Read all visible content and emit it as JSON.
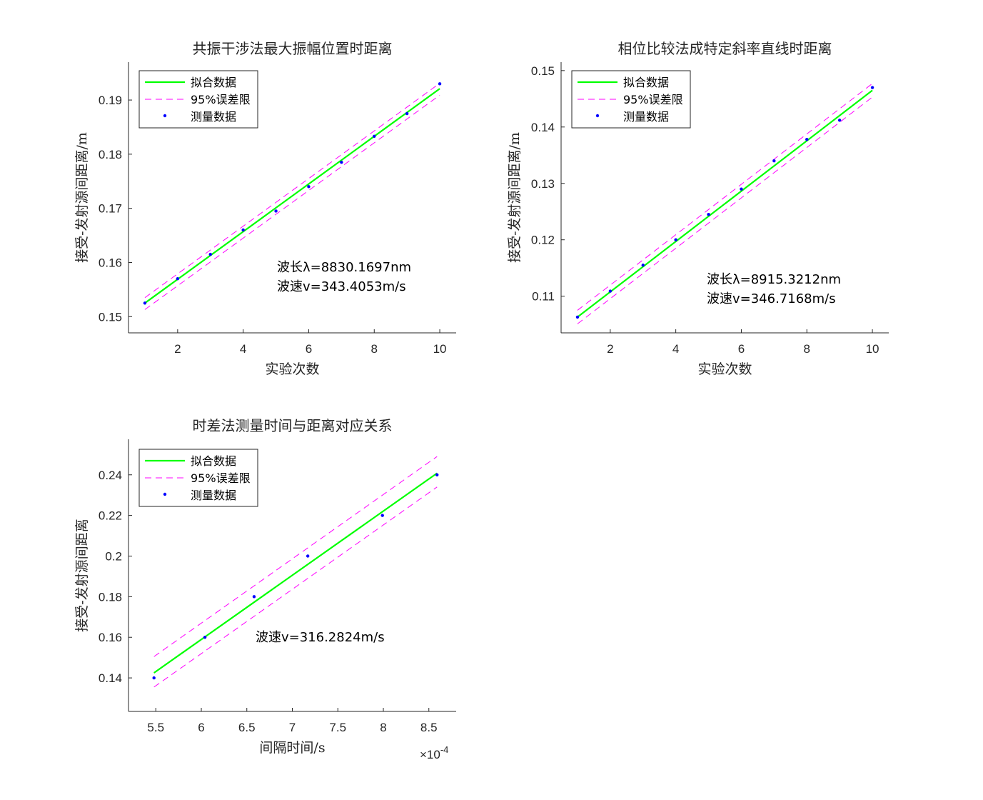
{
  "chart_data": [
    {
      "type": "scatter",
      "title": "共振干涉法最大振幅位置时距离",
      "xlabel": "实验次数",
      "ylabel": "接受-发射源间距离/m",
      "xlim": [
        0.5,
        10.5
      ],
      "ylim": [
        0.147,
        0.197
      ],
      "xticks": [
        2,
        4,
        6,
        8,
        10
      ],
      "yticks": [
        0.15,
        0.16,
        0.17,
        0.18,
        0.19
      ],
      "xtick_labels": [
        "2",
        "4",
        "6",
        "8",
        "10"
      ],
      "ytick_labels": [
        "0.15",
        "0.16",
        "0.17",
        "0.18",
        "0.19"
      ],
      "legend": {
        "position": "top-left",
        "entries": [
          "拟合数据",
          "95%误差限",
          "测量数据"
        ]
      },
      "measured": {
        "x": [
          1,
          2,
          3,
          4,
          5,
          6,
          7,
          8,
          9,
          10
        ],
        "y": [
          0.1525,
          0.157,
          0.1615,
          0.166,
          0.1695,
          0.174,
          0.1785,
          0.1833,
          0.1875,
          0.193
        ]
      },
      "fit": {
        "x": [
          1,
          10
        ],
        "y": [
          0.1525,
          0.1921
        ]
      },
      "bounds_upper": {
        "x": [
          1,
          10
        ],
        "y": [
          0.1535,
          0.1931
        ]
      },
      "bounds_lower": {
        "x": [
          1,
          10
        ],
        "y": [
          0.1513,
          0.1909
        ]
      },
      "annotations": [
        "波长λ=8830.1697nm",
        "波速v=343.4053m/s"
      ],
      "colors": {
        "fit": "#00ff00",
        "bounds": "#ff00ff",
        "measured": "#0000ff"
      }
    },
    {
      "type": "scatter",
      "title": "相位比较法成特定斜率直线时距离",
      "xlabel": "实验次数",
      "ylabel": "接受-发射源间距离/m",
      "xlim": [
        0.5,
        10.5
      ],
      "ylim": [
        0.1035,
        0.1515
      ],
      "xticks": [
        2,
        4,
        6,
        8,
        10
      ],
      "yticks": [
        0.11,
        0.12,
        0.13,
        0.14,
        0.15
      ],
      "xtick_labels": [
        "2",
        "4",
        "6",
        "8",
        "10"
      ],
      "ytick_labels": [
        "0.11",
        "0.12",
        "0.13",
        "0.14",
        "0.15"
      ],
      "legend": {
        "position": "top-left",
        "entries": [
          "拟合数据",
          "95%误差限",
          "测量数据"
        ]
      },
      "measured": {
        "x": [
          1,
          2,
          3,
          4,
          5,
          6,
          7,
          8,
          9,
          10
        ],
        "y": [
          0.1063,
          0.1109,
          0.1155,
          0.12,
          0.1245,
          0.129,
          0.134,
          0.1378,
          0.1412,
          0.147
        ]
      },
      "fit": {
        "x": [
          1,
          10
        ],
        "y": [
          0.1063,
          0.1465
        ]
      },
      "bounds_upper": {
        "x": [
          1,
          10
        ],
        "y": [
          0.1075,
          0.1477
        ]
      },
      "bounds_lower": {
        "x": [
          1,
          10
        ],
        "y": [
          0.1051,
          0.1453
        ]
      },
      "annotations": [
        "波长λ=8915.3212nm",
        "波速v=346.7168m/s"
      ],
      "colors": {
        "fit": "#00ff00",
        "bounds": "#ff00ff",
        "measured": "#0000ff"
      }
    },
    {
      "type": "scatter",
      "title": "时差法测量时间与距离对应关系",
      "xlabel": "间隔时间/s",
      "ylabel": "接受-发射源间距离",
      "xlim": [
        5.2,
        8.8
      ],
      "ylim": [
        0.1235,
        0.2575
      ],
      "xticks": [
        5.5,
        6,
        6.5,
        7,
        7.5,
        8,
        8.5
      ],
      "yticks": [
        0.14,
        0.16,
        0.18,
        0.2,
        0.22,
        0.24
      ],
      "xtick_labels": [
        "5.5",
        "6",
        "6.5",
        "7",
        "7.5",
        "8",
        "8.5"
      ],
      "ytick_labels": [
        "0.14",
        "0.16",
        "0.18",
        "0.2",
        "0.22",
        "0.24"
      ],
      "x_exponent": {
        "base": "×10",
        "power": "-4"
      },
      "legend": {
        "position": "top-left",
        "entries": [
          "拟合数据",
          "95%误差限",
          "测量数据"
        ]
      },
      "measured": {
        "x": [
          5.48,
          6.04,
          6.58,
          7.17,
          7.99,
          8.59
        ],
        "y": [
          0.14,
          0.16,
          0.18,
          0.2,
          0.22,
          0.24
        ]
      },
      "fit": {
        "x": [
          5.48,
          8.59
        ],
        "y": [
          0.1425,
          0.2408
        ]
      },
      "bounds_upper": {
        "x": [
          5.48,
          8.59
        ],
        "y": [
          0.1505,
          0.249
        ]
      },
      "bounds_lower": {
        "x": [
          5.48,
          8.59
        ],
        "y": [
          0.1355,
          0.234
        ]
      },
      "annotations": [
        "波速v=316.2824m/s"
      ],
      "colors": {
        "fit": "#00ff00",
        "bounds": "#ff00ff",
        "measured": "#0000ff"
      }
    }
  ]
}
